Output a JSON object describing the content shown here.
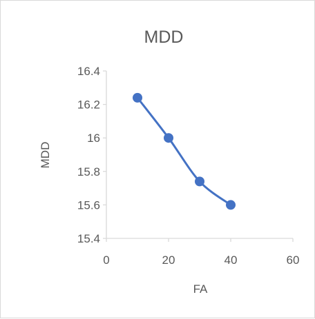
{
  "chart_data": {
    "type": "scatter",
    "title": "MDD",
    "xlabel": "FA",
    "ylabel": "MDD",
    "xlim": [
      0,
      60
    ],
    "ylim": [
      15.4,
      16.4
    ],
    "x_ticks": [
      0,
      20,
      40,
      60
    ],
    "y_ticks": [
      15.4,
      15.6,
      15.8,
      16,
      16.2,
      16.4
    ],
    "x_tick_labels": [
      "0",
      "20",
      "40",
      "60"
    ],
    "y_tick_labels": [
      "15.4",
      "15.6",
      "15.8",
      "16",
      "16.2",
      "16.4"
    ],
    "grid": false,
    "smooth_line": true,
    "series": [
      {
        "x": [
          10,
          20,
          30,
          40
        ],
        "values": [
          16.24,
          16.0,
          15.74,
          15.6
        ]
      }
    ],
    "colors": {
      "series": "#4472c4",
      "axis": "#d9d9d9",
      "text": "#595959"
    }
  }
}
